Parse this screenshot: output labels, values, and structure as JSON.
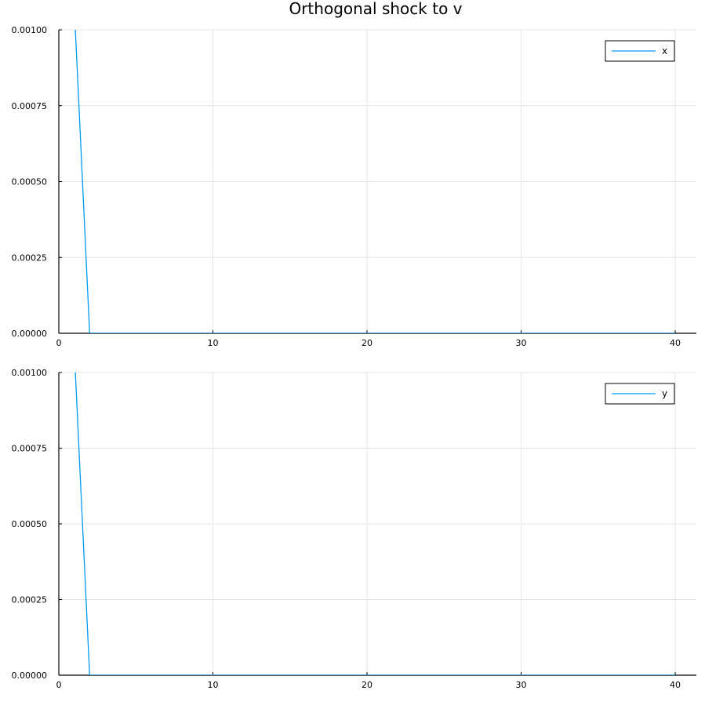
{
  "figure": {
    "title": "Orthogonal shock to v",
    "background": "#ffffff"
  },
  "chart_data": [
    {
      "type": "line",
      "title": "",
      "xlabel": "",
      "ylabel": "",
      "xlim": [
        0,
        40
      ],
      "ylim": [
        0,
        0.001
      ],
      "xticks": [
        0,
        10,
        20,
        30,
        40
      ],
      "xtick_labels": [
        "0",
        "10",
        "20",
        "30",
        "40"
      ],
      "yticks": [
        0,
        0.00025,
        0.0005,
        0.00075,
        0.001
      ],
      "ytick_labels": [
        "0.00000",
        "0.00025",
        "0.00050",
        "0.00075",
        "0.00100"
      ],
      "grid": true,
      "legend_position": "top-right",
      "series": [
        {
          "name": "x",
          "color": "#009af9",
          "x": [
            1,
            2,
            3,
            4,
            5,
            6,
            7,
            8,
            9,
            10,
            11,
            12,
            13,
            14,
            15,
            16,
            17,
            18,
            19,
            20,
            21,
            22,
            23,
            24,
            25,
            26,
            27,
            28,
            29,
            30,
            31,
            32,
            33,
            34,
            35,
            36,
            37,
            38,
            39,
            40
          ],
          "y": [
            0.00108,
            0,
            0,
            0,
            0,
            0,
            0,
            0,
            0,
            0,
            0,
            0,
            0,
            0,
            0,
            0,
            0,
            0,
            0,
            0,
            0,
            0,
            0,
            0,
            0,
            0,
            0,
            0,
            0,
            0,
            0,
            0,
            0,
            0,
            0,
            0,
            0,
            0,
            0,
            0
          ]
        }
      ]
    },
    {
      "type": "line",
      "title": "",
      "xlabel": "",
      "ylabel": "",
      "xlim": [
        0,
        40
      ],
      "ylim": [
        0,
        0.001
      ],
      "xticks": [
        0,
        10,
        20,
        30,
        40
      ],
      "xtick_labels": [
        "0",
        "10",
        "20",
        "30",
        "40"
      ],
      "yticks": [
        0,
        0.00025,
        0.0005,
        0.00075,
        0.001
      ],
      "ytick_labels": [
        "0.00000",
        "0.00025",
        "0.00050",
        "0.00075",
        "0.00100"
      ],
      "grid": true,
      "legend_position": "top-right",
      "series": [
        {
          "name": "y",
          "color": "#009af9",
          "x": [
            1,
            2,
            3,
            4,
            5,
            6,
            7,
            8,
            9,
            10,
            11,
            12,
            13,
            14,
            15,
            16,
            17,
            18,
            19,
            20,
            21,
            22,
            23,
            24,
            25,
            26,
            27,
            28,
            29,
            30,
            31,
            32,
            33,
            34,
            35,
            36,
            37,
            38,
            39,
            40
          ],
          "y": [
            0.00108,
            0,
            0,
            0,
            0,
            0,
            0,
            0,
            0,
            0,
            0,
            0,
            0,
            0,
            0,
            0,
            0,
            0,
            0,
            0,
            0,
            0,
            0,
            0,
            0,
            0,
            0,
            0,
            0,
            0,
            0,
            0,
            0,
            0,
            0,
            0,
            0,
            0,
            0,
            0
          ]
        }
      ]
    }
  ]
}
